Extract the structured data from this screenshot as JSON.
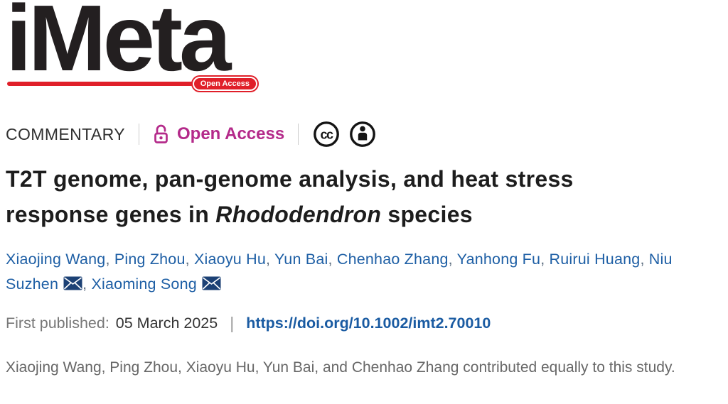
{
  "logo": {
    "text": "iMeta",
    "badge_label": "Open Access"
  },
  "meta": {
    "category": "COMMENTARY",
    "open_access_label": "Open Access",
    "license_icons": [
      "cc-icon",
      "cc-by-person-icon"
    ]
  },
  "title": {
    "line1": "T2T genome, pan-genome analysis, and heat stress",
    "line2_pre": "response genes in ",
    "line2_italic": "Rhododendron",
    "line2_post": " species"
  },
  "authors": {
    "separator": ", ",
    "list": [
      {
        "name": "Xiaojing Wang",
        "envelope": false
      },
      {
        "name": "Ping Zhou",
        "envelope": false
      },
      {
        "name": "Xiaoyu Hu",
        "envelope": false
      },
      {
        "name": "Yun Bai",
        "envelope": false
      },
      {
        "name": "Chenhao Zhang",
        "envelope": false
      },
      {
        "name": "Yanhong Fu",
        "envelope": false
      },
      {
        "name": "Ruirui Huang",
        "envelope": false
      },
      {
        "name": "Niu Suzhen",
        "envelope": true
      },
      {
        "name": "Xiaoming Song",
        "envelope": true
      }
    ]
  },
  "published": {
    "label": "First published:",
    "date": "05 March 2025",
    "divider": "|",
    "doi": "https://doi.org/10.1002/imt2.70010"
  },
  "note": {
    "text": "Xiaojing Wang, Ping Zhou, Xiaoyu Hu, Yun Bai, and Chenhao Zhang contributed equally to this study."
  },
  "colors": {
    "accent_red": "#e01f29",
    "open_access_pink": "#b42a8a",
    "author_link_blue": "#1e5fa5",
    "doi_blue": "#1a5ba2",
    "envelope_navy": "#1c4175",
    "icon_black": "#141414"
  }
}
